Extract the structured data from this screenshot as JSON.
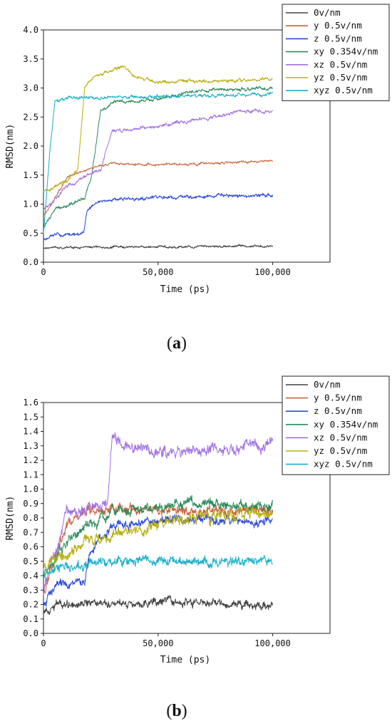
{
  "chart_data": [
    {
      "panel": "a",
      "panel_label": "a",
      "type": "line",
      "xlabel": "Time (ps)",
      "ylabel": "RMSD(nm)",
      "xlim": [
        0,
        125000
      ],
      "ylim": [
        0,
        4.0
      ],
      "xticks": [
        0,
        50000,
        100000
      ],
      "xtick_labels": [
        "0",
        "50,000",
        "100,000"
      ],
      "yticks": [
        0,
        0.5,
        1.0,
        1.5,
        2.0,
        2.5,
        3.0,
        3.5,
        4.0
      ],
      "ytick_labels": [
        "0.0",
        "0.5",
        "1.0",
        "1.5",
        "2.0",
        "2.5",
        "3.0",
        "3.5",
        "4.0"
      ],
      "legend_position": "top-right",
      "series": [
        {
          "name": "0v/nm",
          "color": "#404040",
          "noise": 0.02,
          "x": [
            0,
            100000
          ],
          "y": [
            0.25,
            0.28
          ]
        },
        {
          "name": "y 0.5v/nm",
          "color": "#c8643c",
          "noise": 0.02,
          "x": [
            0,
            5000,
            10000,
            20000,
            30000,
            50000,
            70000,
            100000
          ],
          "y": [
            0.8,
            1.1,
            1.45,
            1.62,
            1.7,
            1.68,
            1.7,
            1.75
          ]
        },
        {
          "name": "z 0.5v/nm",
          "color": "#2a4ad8",
          "noise": 0.03,
          "x": [
            0,
            5000,
            17500,
            19000,
            25000,
            40000,
            60000,
            80000,
            100000
          ],
          "y": [
            0.38,
            0.47,
            0.48,
            0.9,
            1.05,
            1.1,
            1.12,
            1.15,
            1.15
          ]
        },
        {
          "name": "xy 0.354v/nm",
          "color": "#2a8a5a",
          "noise": 0.03,
          "x": [
            0,
            5000,
            18000,
            21000,
            25000,
            30000,
            50000,
            65000,
            100000
          ],
          "y": [
            0.6,
            0.9,
            1.1,
            1.5,
            2.6,
            2.75,
            2.8,
            2.95,
            3.0
          ]
        },
        {
          "name": "xz 0.5v/nm",
          "color": "#a070e0",
          "noise": 0.03,
          "x": [
            0,
            10000,
            25000,
            30000,
            50000,
            70000,
            85000,
            100000
          ],
          "y": [
            0.9,
            1.3,
            1.6,
            2.25,
            2.35,
            2.45,
            2.6,
            2.6
          ]
        },
        {
          "name": "yz 0.5v/nm",
          "color": "#b8b010",
          "noise": 0.03,
          "x": [
            0,
            10000,
            15000,
            18000,
            22000,
            30000,
            35000,
            40000,
            50000,
            70000,
            100000
          ],
          "y": [
            1.2,
            1.4,
            1.6,
            3.0,
            3.2,
            3.3,
            3.38,
            3.2,
            3.1,
            3.12,
            3.15
          ]
        },
        {
          "name": "xyz 0.5v/nm",
          "color": "#18b0c8",
          "noise": 0.03,
          "x": [
            0,
            3000,
            5000,
            10000,
            50000,
            100000
          ],
          "y": [
            0.5,
            2.0,
            2.75,
            2.82,
            2.85,
            2.9
          ]
        }
      ]
    },
    {
      "panel": "b",
      "panel_label": "b",
      "type": "line",
      "xlabel": "Time (ps)",
      "ylabel": "RMSD(nm)",
      "xlim": [
        0,
        125000
      ],
      "ylim": [
        0,
        1.6
      ],
      "xticks": [
        0,
        50000,
        100000
      ],
      "xtick_labels": [
        "0",
        "50,000",
        "100,000"
      ],
      "yticks": [
        0,
        0.1,
        0.2,
        0.3,
        0.4,
        0.5,
        0.6,
        0.7,
        0.8,
        0.9,
        1.0,
        1.1,
        1.2,
        1.3,
        1.4,
        1.5,
        1.6
      ],
      "ytick_labels": [
        "0.0",
        "0.1",
        "0.2",
        "0.3",
        "0.4",
        "0.5",
        "0.6",
        "0.7",
        "0.8",
        "0.9",
        "1.0",
        "1.1",
        "1.2",
        "1.3",
        "1.4",
        "1.5",
        "1.6"
      ],
      "legend_position": "top-right",
      "series": [
        {
          "name": "0v/nm",
          "color": "#404040",
          "noise": 0.03,
          "x": [
            0,
            5000,
            20000,
            100000
          ],
          "y": [
            0.16,
            0.2,
            0.22,
            0.2
          ]
        },
        {
          "name": "y 0.5v/nm",
          "color": "#c8643c",
          "noise": 0.035,
          "x": [
            0,
            10000,
            20000,
            40000,
            60000,
            100000
          ],
          "y": [
            0.3,
            0.75,
            0.85,
            0.86,
            0.84,
            0.85
          ]
        },
        {
          "name": "z 0.5v/nm",
          "color": "#2a4ad8",
          "noise": 0.03,
          "x": [
            0,
            5000,
            18000,
            20000,
            30000,
            60000,
            100000
          ],
          "y": [
            0.2,
            0.33,
            0.35,
            0.55,
            0.75,
            0.8,
            0.77
          ]
        },
        {
          "name": "xy 0.354v/nm",
          "color": "#2a8a5a",
          "noise": 0.035,
          "x": [
            0,
            10000,
            30000,
            50000,
            60000,
            100000
          ],
          "y": [
            0.4,
            0.65,
            0.85,
            0.88,
            0.9,
            0.88
          ]
        },
        {
          "name": "xz 0.5v/nm",
          "color": "#a070e0",
          "noise": 0.04,
          "x": [
            0,
            10000,
            28000,
            30000,
            32000,
            50000,
            100000
          ],
          "y": [
            0.3,
            0.85,
            0.9,
            1.38,
            1.32,
            1.25,
            1.3
          ]
        },
        {
          "name": "yz 0.5v/nm",
          "color": "#b8b010",
          "noise": 0.04,
          "x": [
            0,
            10000,
            20000,
            40000,
            60000,
            100000
          ],
          "y": [
            0.45,
            0.55,
            0.65,
            0.7,
            0.8,
            0.83
          ]
        },
        {
          "name": "xyz 0.5v/nm",
          "color": "#18b0c8",
          "noise": 0.035,
          "x": [
            0,
            5000,
            15000,
            30000,
            60000,
            100000
          ],
          "y": [
            0.4,
            0.45,
            0.48,
            0.5,
            0.5,
            0.5
          ]
        }
      ]
    }
  ]
}
